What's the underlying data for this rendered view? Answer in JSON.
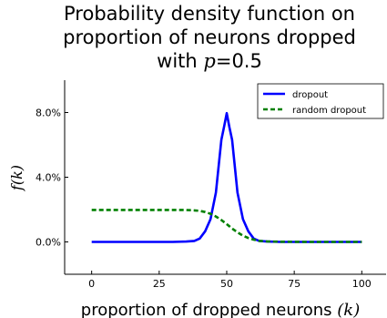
{
  "chart_data": {
    "type": "line",
    "title": {
      "line1": "Probability density function on",
      "line2": "proportion of neurons dropped",
      "line3_prefix": "with ",
      "line3_math": "p",
      "line3_suffix": "=0.5"
    },
    "xlabel": "proportion of dropped neurons",
    "xlabel_math": "(k)",
    "ylabel": "f(k)",
    "xlim": [
      -10,
      109
    ],
    "ylim": [
      -0.02,
      0.1
    ],
    "xticks": [
      0,
      25,
      50,
      75,
      100
    ],
    "xtick_labels": [
      "0",
      "25",
      "50",
      "75",
      "100"
    ],
    "yticks": [
      0.0,
      0.04,
      0.08
    ],
    "ytick_labels": [
      "0.0%",
      "4.0%",
      "8.0%"
    ],
    "legend_position": "top-right",
    "grid": false,
    "series": [
      {
        "name": "dropout",
        "color": "#0000ff",
        "style": "solid",
        "x": [
          0,
          10,
          20,
          30,
          35,
          38,
          40,
          42,
          44,
          46,
          48,
          49,
          50,
          51,
          52,
          54,
          56,
          58,
          60,
          62,
          65,
          70,
          80,
          90,
          100
        ],
        "y": [
          0,
          0,
          0,
          0.0,
          0.0002,
          0.0006,
          0.0021,
          0.0066,
          0.0141,
          0.0305,
          0.0631,
          0.071,
          0.0796,
          0.071,
          0.0631,
          0.0305,
          0.0141,
          0.0066,
          0.0021,
          0.0006,
          0.0002,
          0,
          0,
          0,
          0
        ]
      },
      {
        "name": "random dropout",
        "color": "#008000",
        "style": "dashed",
        "x": [
          0,
          10,
          20,
          30,
          35,
          38,
          40,
          42,
          44,
          46,
          48,
          50,
          52,
          54,
          56,
          58,
          60,
          62,
          65,
          70,
          80,
          90,
          100
        ],
        "y": [
          0.0198,
          0.0198,
          0.0198,
          0.0198,
          0.0197,
          0.0195,
          0.0192,
          0.0185,
          0.0174,
          0.0157,
          0.0135,
          0.011,
          0.0083,
          0.0059,
          0.0039,
          0.0024,
          0.0014,
          0.0007,
          0.0003,
          0.0001,
          0,
          0,
          0
        ]
      }
    ]
  }
}
